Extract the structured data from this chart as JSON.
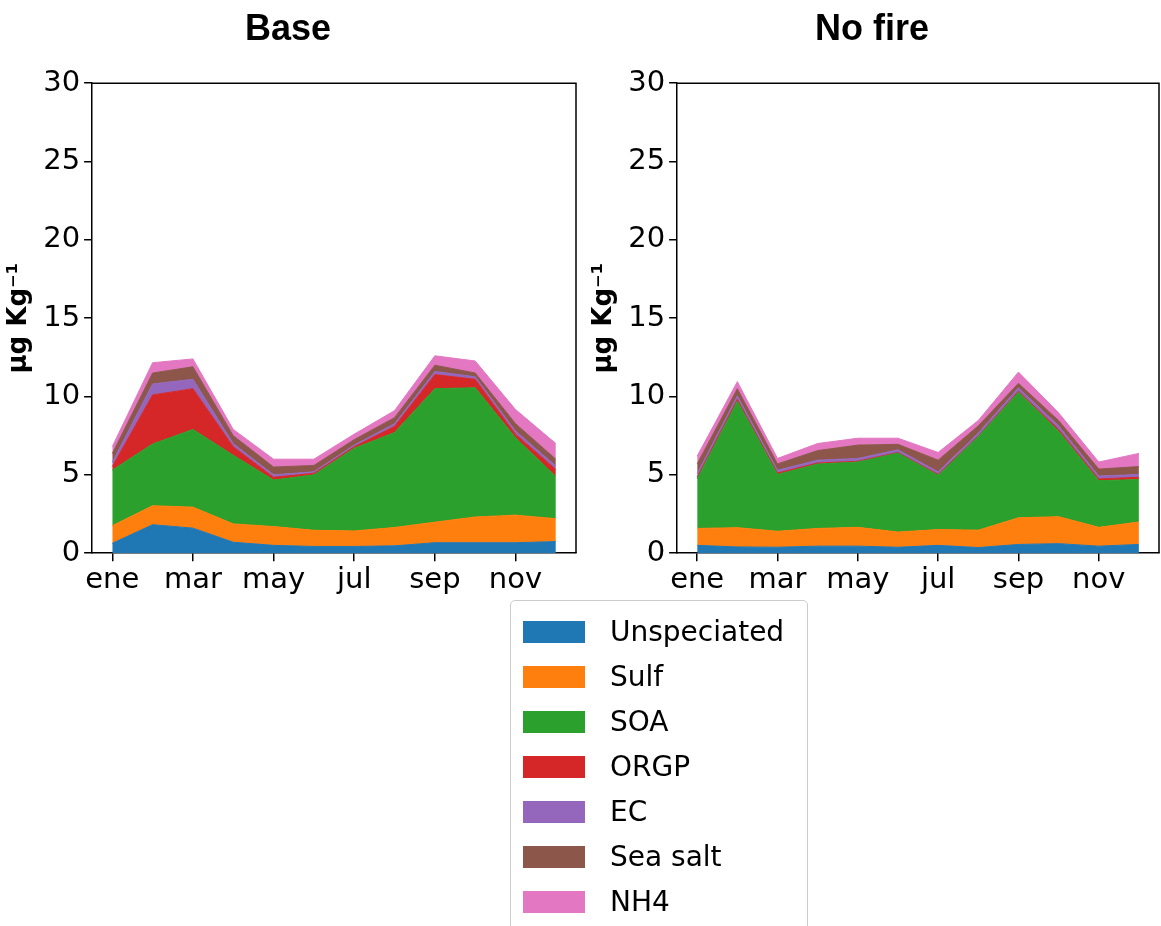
{
  "chart_data": [
    {
      "type": "area",
      "title": "Base",
      "ylabel": "μg Kg⁻¹",
      "stacked": true,
      "legend": "bottom",
      "categories": [
        "ene",
        null,
        "mar",
        null,
        "may",
        null,
        "jul",
        null,
        "sep",
        null,
        "nov",
        null
      ],
      "ylim": [
        0,
        30
      ],
      "yticks": [
        0,
        5,
        10,
        15,
        20,
        25,
        30
      ],
      "series": [
        {
          "name": "Unspeciated",
          "color": "#1f77b4",
          "values": [
            0.63,
            1.82,
            1.6,
            0.7,
            0.5,
            0.43,
            0.43,
            0.47,
            0.67,
            0.67,
            0.67,
            0.74
          ]
        },
        {
          "name": "Sulf",
          "color": "#ff7f0e",
          "values": [
            1.12,
            1.21,
            1.34,
            1.17,
            1.2,
            1.03,
            0.99,
            1.17,
            1.31,
            1.64,
            1.76,
            1.46
          ]
        },
        {
          "name": "SOA",
          "color": "#2ca02c",
          "values": [
            3.55,
            3.94,
            4.96,
            4.38,
            2.97,
            3.54,
            5.28,
            6.06,
            8.52,
            8.25,
            4.94,
            2.7
          ]
        },
        {
          "name": "ORGP",
          "color": "#d62728",
          "values": [
            0.23,
            3.13,
            2.6,
            0.55,
            0.18,
            0.1,
            0.1,
            0.4,
            0.9,
            0.54,
            0.23,
            0.45
          ]
        },
        {
          "name": "EC",
          "color": "#9467bd",
          "values": [
            0.27,
            0.7,
            0.6,
            0.2,
            0.15,
            0.1,
            0.1,
            0.17,
            0.2,
            0.16,
            0.2,
            0.22
          ]
        },
        {
          "name": "Sea salt",
          "color": "#8c564b",
          "values": [
            0.56,
            0.7,
            0.8,
            0.5,
            0.5,
            0.4,
            0.35,
            0.38,
            0.4,
            0.24,
            0.47,
            0.43
          ]
        },
        {
          "name": "NH4",
          "color": "#e377c2",
          "values": [
            0.44,
            0.66,
            0.5,
            0.4,
            0.5,
            0.4,
            0.35,
            0.45,
            0.6,
            0.77,
            0.9,
            1.0
          ]
        }
      ]
    },
    {
      "type": "area",
      "title": "No fire",
      "ylabel": "μg Kg⁻¹",
      "stacked": true,
      "categories": [
        "ene",
        null,
        "mar",
        null,
        "may",
        null,
        "jul",
        null,
        "sep",
        null,
        "nov",
        null
      ],
      "ylim": [
        0,
        30
      ],
      "yticks": [
        0,
        5,
        10,
        15,
        20,
        25,
        30
      ],
      "series": [
        {
          "color": "#1f77b4",
          "values": [
            0.5,
            0.4,
            0.38,
            0.45,
            0.45,
            0.38,
            0.5,
            0.36,
            0.56,
            0.61,
            0.45,
            0.56
          ]
        },
        {
          "color": "#ff7f0e",
          "values": [
            1.08,
            1.23,
            1.02,
            1.13,
            1.2,
            0.97,
            1.01,
            1.11,
            1.7,
            1.72,
            1.2,
            1.43
          ]
        },
        {
          "color": "#2ca02c",
          "values": [
            3.16,
            8.07,
            3.63,
            4.11,
            4.17,
            5.04,
            3.46,
            5.98,
            8.01,
            5.46,
            2.98,
            2.71
          ]
        },
        {
          "color": "#d62728",
          "values": [
            0.11,
            0.12,
            0.09,
            0.07,
            0.05,
            0.04,
            0.06,
            0.04,
            0.07,
            0.11,
            0.11,
            0.15
          ]
        },
        {
          "color": "#9467bd",
          "values": [
            0.23,
            0.23,
            0.18,
            0.18,
            0.18,
            0.17,
            0.16,
            0.18,
            0.22,
            0.23,
            0.18,
            0.18
          ]
        },
        {
          "color": "#8c564b",
          "values": [
            0.62,
            0.45,
            0.4,
            0.61,
            0.85,
            0.35,
            0.75,
            0.46,
            0.28,
            0.34,
            0.45,
            0.5
          ]
        },
        {
          "color": "#e377c2",
          "values": [
            0.5,
            0.45,
            0.35,
            0.45,
            0.44,
            0.39,
            0.49,
            0.34,
            0.72,
            0.49,
            0.45,
            0.84
          ]
        }
      ]
    }
  ]
}
